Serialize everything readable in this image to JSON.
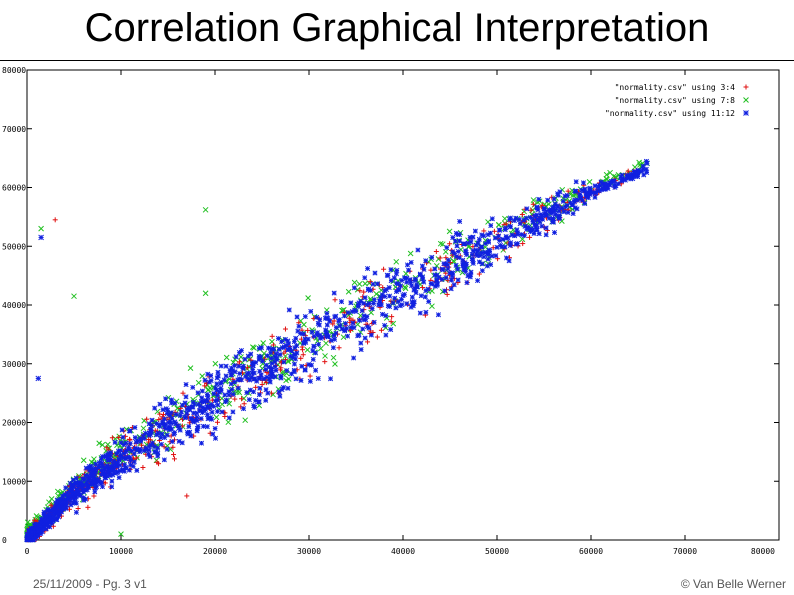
{
  "slide": {
    "title": "Correlation Graphical Interpretation",
    "footer_left": "25/11/2009 - Pg. 3 v1",
    "footer_right": "© Van Belle Werner"
  },
  "chart_data": {
    "type": "scatter",
    "title": "",
    "xlabel": "",
    "ylabel": "",
    "xlim": [
      0,
      80000
    ],
    "ylim": [
      0,
      80000
    ],
    "xticks": [
      0,
      10000,
      20000,
      30000,
      40000,
      50000,
      60000,
      70000,
      80000
    ],
    "yticks": [
      0,
      10000,
      20000,
      30000,
      40000,
      50000,
      60000,
      70000,
      80000
    ],
    "legend_position": "top-right",
    "trend": {
      "description": "dense positive, concave correlation cloud from the origin to about (66000, 64000)",
      "points": [
        [
          0,
          0
        ],
        [
          5000,
          8000
        ],
        [
          10000,
          14000
        ],
        [
          20000,
          24000
        ],
        [
          30000,
          33500
        ],
        [
          40000,
          42500
        ],
        [
          50000,
          51000
        ],
        [
          60000,
          59000
        ],
        [
          66000,
          63500
        ]
      ]
    },
    "series": [
      {
        "name": "\"normality.csv\" using 3:4",
        "marker": "+",
        "color": "#e01010"
      },
      {
        "name": "\"normality.csv\" using 7:8",
        "marker": "x",
        "color": "#22c022"
      },
      {
        "name": "\"normality.csv\" using 11:12",
        "marker": "*",
        "color": "#1020e0"
      }
    ],
    "outliers": [
      {
        "series": 1,
        "x": 3000,
        "y": 54500
      },
      {
        "series": 2,
        "x": 1500,
        "y": 53000
      },
      {
        "series": 3,
        "x": 1500,
        "y": 51500
      },
      {
        "series": 2,
        "x": 5000,
        "y": 41500
      },
      {
        "series": 2,
        "x": 19000,
        "y": 56200
      },
      {
        "series": 2,
        "x": 19000,
        "y": 42000
      },
      {
        "series": 3,
        "x": 1200,
        "y": 27500
      },
      {
        "series": 2,
        "x": 10000,
        "y": 1000
      },
      {
        "series": 1,
        "x": 17000,
        "y": 7500
      }
    ]
  }
}
